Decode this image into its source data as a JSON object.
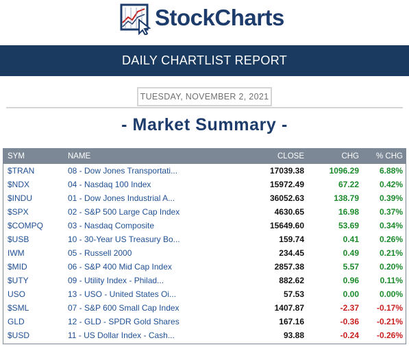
{
  "brand": {
    "name": "StockCharts"
  },
  "report": {
    "banner": "DAILY CHARTLIST REPORT",
    "date": "TUESDAY, NOVEMBER 2, 2021",
    "section_title": "- Market Summary -"
  },
  "table": {
    "headers": {
      "sym": "SYM",
      "name": "NAME",
      "close": "CLOSE",
      "chg": "CHG",
      "pct": "% CHG"
    },
    "rows": [
      {
        "sym": "$TRAN",
        "name": "08 - Dow Jones Transportati...",
        "close": "17039.38",
        "chg": "1096.29",
        "pct": "6.88%",
        "dir": "pos"
      },
      {
        "sym": "$NDX",
        "name": "04 - Nasdaq 100 Index",
        "close": "15972.49",
        "chg": "67.22",
        "pct": "0.42%",
        "dir": "pos"
      },
      {
        "sym": "$INDU",
        "name": "01 - Dow Jones Industrial A...",
        "close": "36052.63",
        "chg": "138.79",
        "pct": "0.39%",
        "dir": "pos"
      },
      {
        "sym": "$SPX",
        "name": "02 - S&P 500 Large Cap Index",
        "close": "4630.65",
        "chg": "16.98",
        "pct": "0.37%",
        "dir": "pos"
      },
      {
        "sym": "$COMPQ",
        "name": "03 - Nasdaq Composite",
        "close": "15649.60",
        "chg": "53.69",
        "pct": "0.34%",
        "dir": "pos"
      },
      {
        "sym": "$USB",
        "name": "10 - 30-Year US Treasury Bo...",
        "close": "159.74",
        "chg": "0.41",
        "pct": "0.26%",
        "dir": "pos"
      },
      {
        "sym": "IWM",
        "name": "05 - Russell 2000",
        "close": "234.45",
        "chg": "0.49",
        "pct": "0.21%",
        "dir": "pos"
      },
      {
        "sym": "$MID",
        "name": "06 - S&P 400 Mid Cap Index",
        "close": "2857.38",
        "chg": "5.57",
        "pct": "0.20%",
        "dir": "pos"
      },
      {
        "sym": "$UTY",
        "name": "09 - Utility Index - Philad...",
        "close": "882.62",
        "chg": "0.96",
        "pct": "0.11%",
        "dir": "pos"
      },
      {
        "sym": "USO",
        "name": "13 - USO - United States Oi...",
        "close": "57.53",
        "chg": "0.00",
        "pct": "0.00%",
        "dir": "pos"
      },
      {
        "sym": "$SML",
        "name": "07 - S&P 600 Small Cap Index",
        "close": "1407.87",
        "chg": "-2.37",
        "pct": "-0.17%",
        "dir": "neg"
      },
      {
        "sym": "GLD",
        "name": "12 - GLD - SPDR Gold Shares",
        "close": "167.16",
        "chg": "-0.36",
        "pct": "-0.21%",
        "dir": "neg"
      },
      {
        "sym": "$USD",
        "name": "11 - US Dollar Index - Cash...",
        "close": "93.88",
        "chg": "-0.24",
        "pct": "-0.26%",
        "dir": "neg"
      }
    ]
  },
  "colors": {
    "navy": "#1a3a60",
    "link": "#1f4f93",
    "positive": "#1a8a2a",
    "negative": "#c8201e",
    "header_gray": "#7c8896"
  }
}
